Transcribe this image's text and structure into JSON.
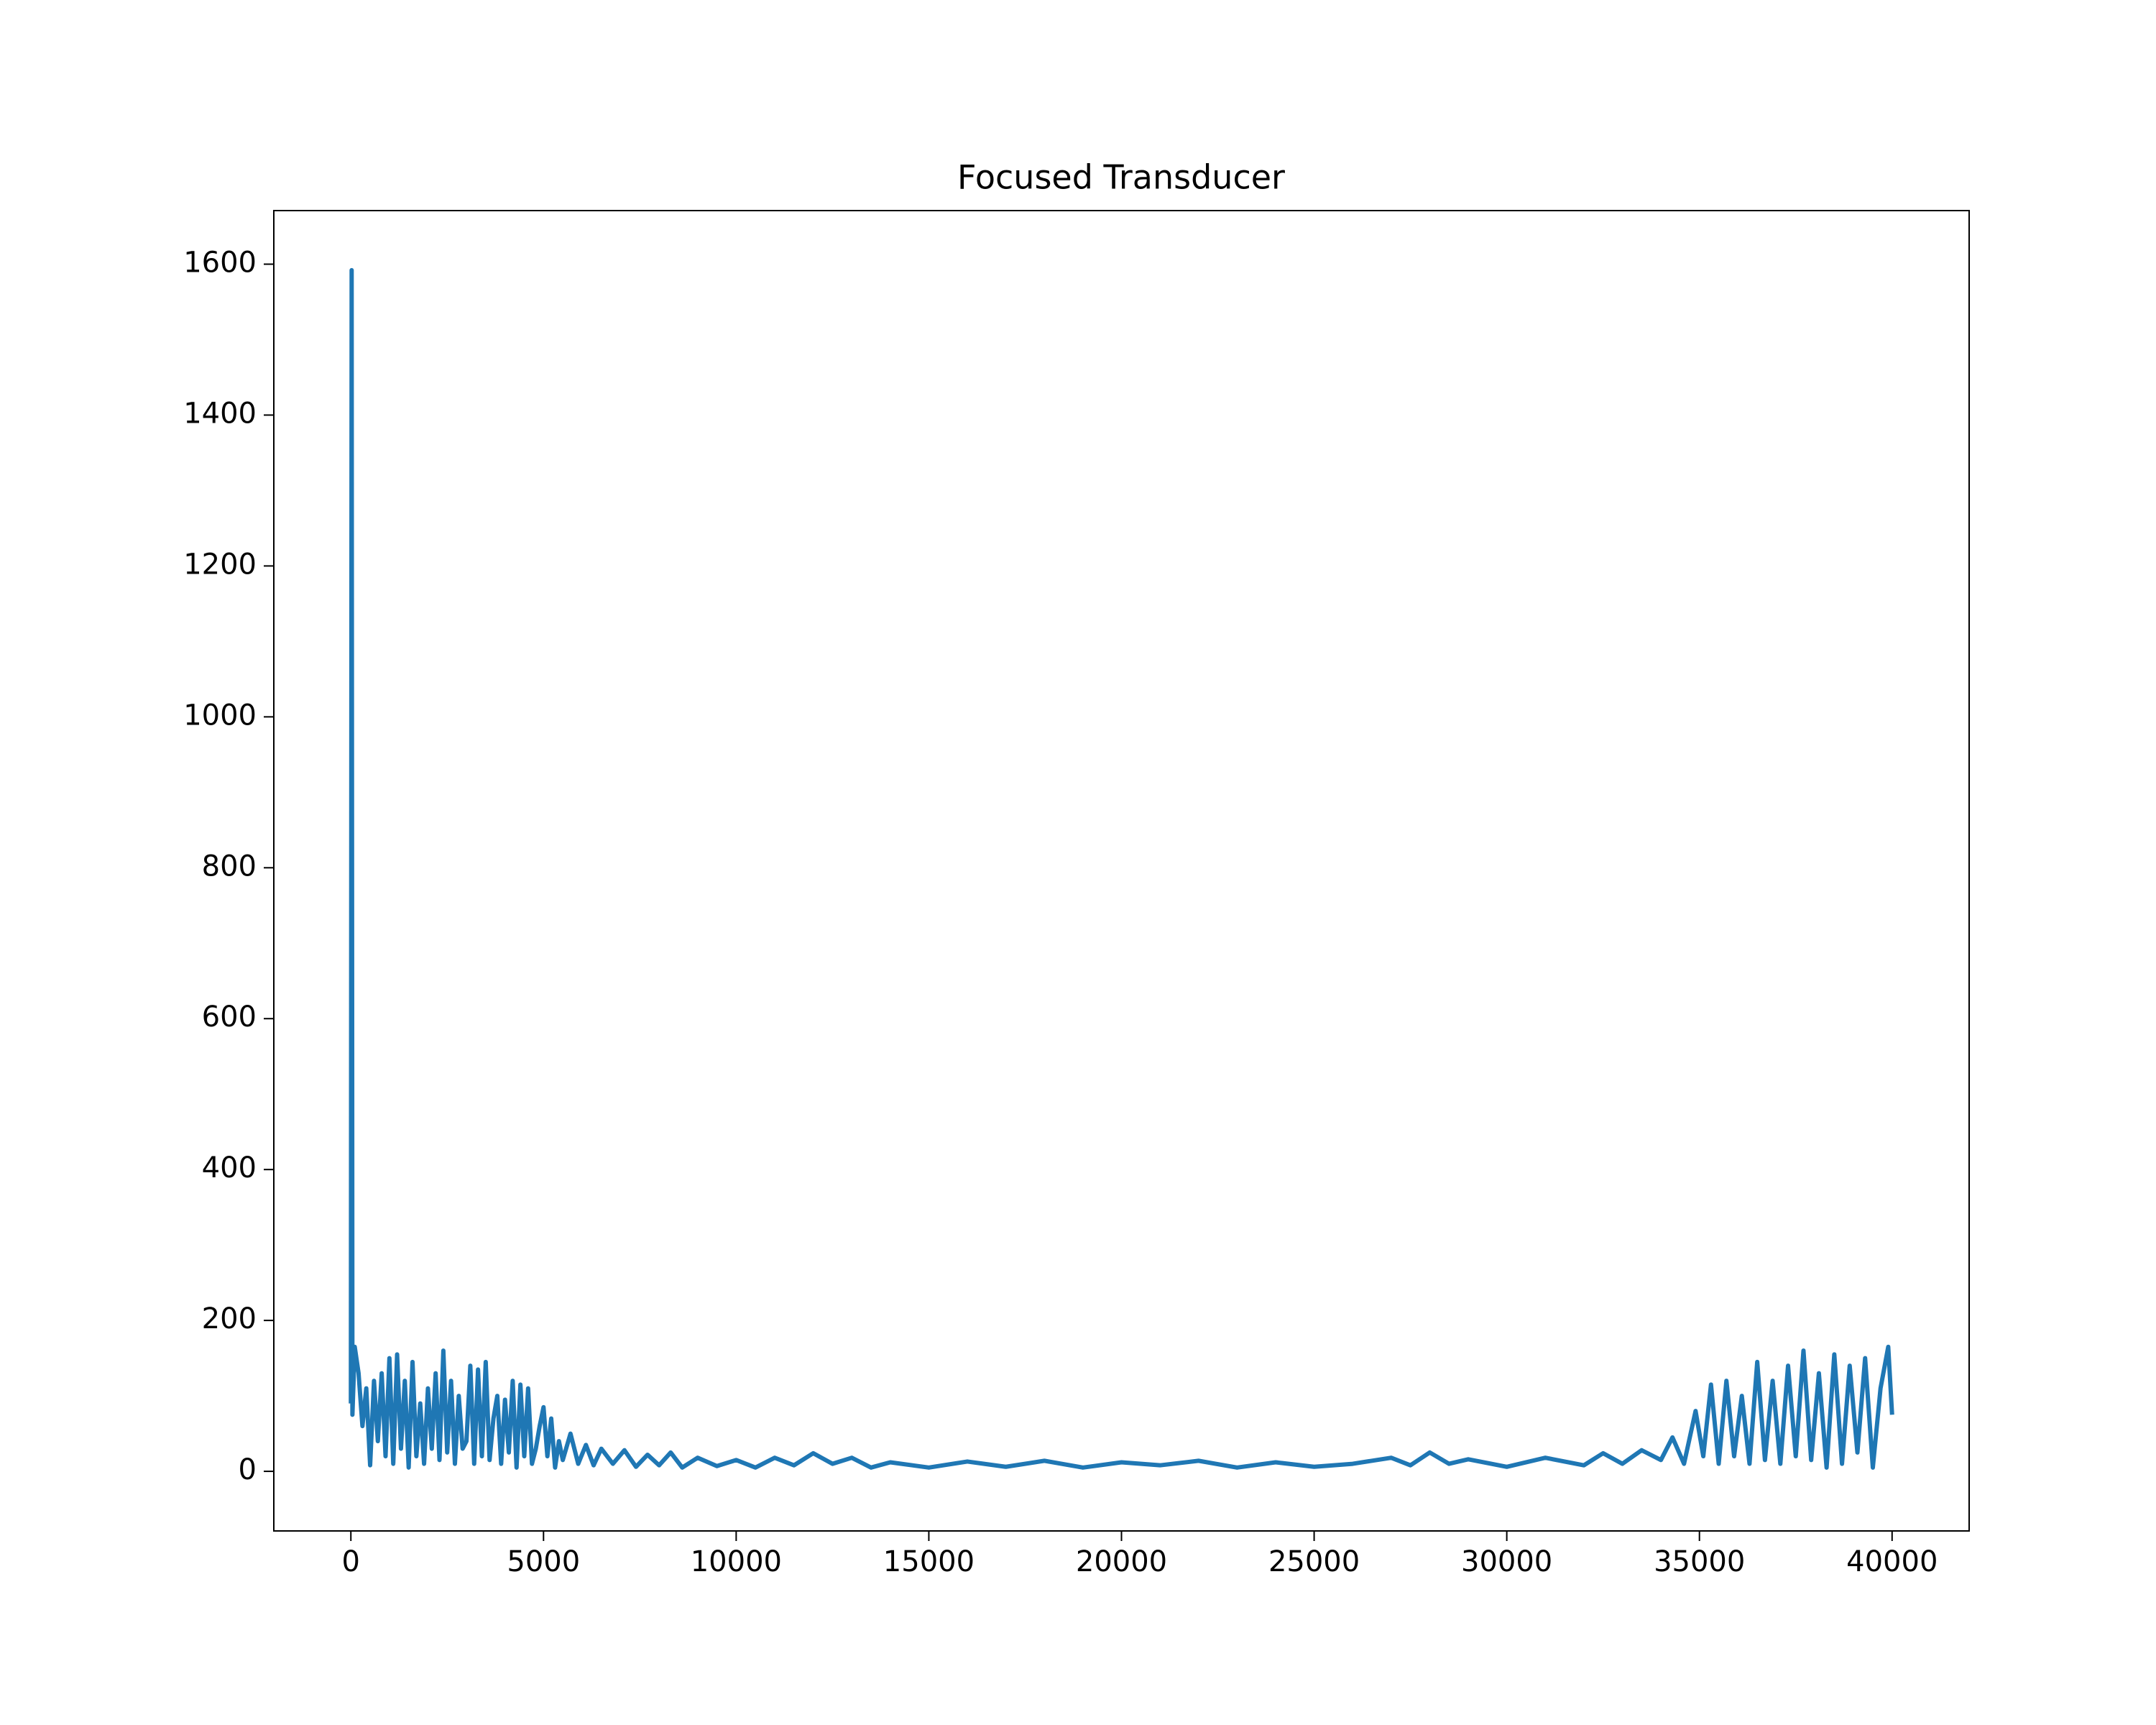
{
  "chart_data": {
    "type": "line",
    "title": "Focused Transducer",
    "x": [
      0,
      20,
      40,
      100,
      200,
      300,
      400,
      500,
      600,
      700,
      800,
      900,
      1000,
      1100,
      1200,
      1300,
      1400,
      1500,
      1600,
      1700,
      1800,
      1900,
      2000,
      2100,
      2200,
      2300,
      2400,
      2500,
      2600,
      2700,
      2800,
      2900,
      3000,
      3100,
      3200,
      3300,
      3400,
      3500,
      3600,
      3700,
      3800,
      3900,
      4000,
      4100,
      4200,
      4300,
      4400,
      4500,
      4600,
      4700,
      4800,
      4900,
      5000,
      5100,
      5200,
      5300,
      5400,
      5500,
      5700,
      5900,
      6100,
      6300,
      6500,
      6800,
      7100,
      7400,
      7700,
      8000,
      8300,
      8600,
      9000,
      9500,
      10000,
      10500,
      11000,
      11500,
      12000,
      12500,
      13000,
      13500,
      14000,
      15000,
      16000,
      17000,
      18000,
      19000,
      20000,
      21000,
      22000,
      23000,
      24000,
      25000,
      26000,
      27000,
      27500,
      28000,
      28500,
      29000,
      30000,
      31000,
      32000,
      32500,
      33000,
      33500,
      34000,
      34300,
      34600,
      34900,
      35100,
      35300,
      35500,
      35700,
      35900,
      36100,
      36300,
      36500,
      36700,
      36900,
      37100,
      37300,
      37500,
      37700,
      37900,
      38100,
      38300,
      38500,
      38700,
      38900,
      39100,
      39300,
      39500,
      39700,
      39900,
      40000
    ],
    "series": [
      {
        "color": "#1f77b4",
        "values": [
          90,
          1592,
          75,
          165,
          130,
          60,
          110,
          8,
          120,
          40,
          130,
          20,
          150,
          10,
          155,
          30,
          120,
          5,
          145,
          20,
          90,
          10,
          110,
          30,
          130,
          15,
          160,
          25,
          120,
          10,
          100,
          30,
          40,
          140,
          10,
          135,
          20,
          145,
          15,
          70,
          100,
          10,
          95,
          25,
          120,
          5,
          115,
          20,
          110,
          10,
          30,
          60,
          85,
          20,
          70,
          5,
          40,
          15,
          50,
          10,
          35,
          8,
          30,
          10,
          28,
          6,
          22,
          8,
          25,
          5,
          18,
          7,
          15,
          5,
          18,
          8,
          24,
          10,
          18,
          5,
          12,
          5,
          13,
          6,
          14,
          5,
          12,
          8,
          14,
          5,
          12,
          6,
          10,
          18,
          8,
          25,
          10,
          16,
          6,
          18,
          8,
          24,
          10,
          28,
          15,
          45,
          10,
          80,
          20,
          115,
          10,
          120,
          20,
          100,
          10,
          145,
          15,
          120,
          10,
          140,
          20,
          160,
          15,
          130,
          5,
          155,
          10,
          140,
          25,
          150,
          5,
          110,
          165,
          75
        ]
      }
    ],
    "xlim": [
      -2000,
      42000
    ],
    "ylim": [
      -79,
      1671
    ],
    "xticks": [
      0,
      5000,
      10000,
      15000,
      20000,
      25000,
      30000,
      35000,
      40000
    ],
    "yticks": [
      0,
      200,
      400,
      600,
      800,
      1000,
      1200,
      1400,
      1600
    ]
  }
}
